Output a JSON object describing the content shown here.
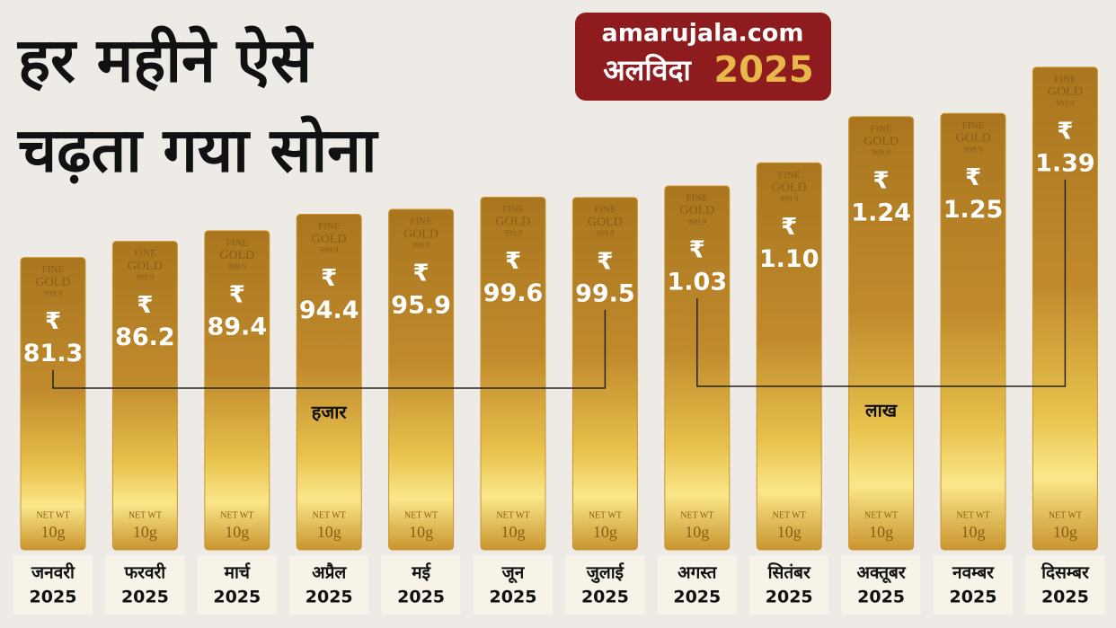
{
  "chart_data": {
    "type": "bar",
    "title_lines": [
      "हर महीने ऐसे",
      "चढ़ता गया सोना"
    ],
    "logo": {
      "site": "amarujala.com",
      "tagline": "अलविदा",
      "year": "2025"
    },
    "categories": [
      "जनवरी",
      "फरवरी",
      "मार्च",
      "अप्रैल",
      "मई",
      "जून",
      "जुलाई",
      "अगस्त",
      "सितंबर",
      "अक्तूबर",
      "नवम्बर",
      "दिसम्बर"
    ],
    "category_year": "2025",
    "currency": "₹",
    "values": [
      81300,
      86200,
      89400,
      94400,
      95900,
      99600,
      99500,
      103000,
      110000,
      124000,
      125000,
      139000
    ],
    "value_labels": [
      "81.3",
      "86.2",
      "89.4",
      "94.4",
      "95.9",
      "99.6",
      "99.5",
      "1.03",
      "1.10",
      "1.24",
      "1.25",
      "1.39"
    ],
    "unit_labels": [
      "हजार",
      "लाख"
    ],
    "bar_text": {
      "fine": "FINE",
      "gold": "GOLD",
      "purity": "999.9",
      "net_wt": "NET WT",
      "weight": "10g"
    },
    "color": "#c9952f"
  }
}
